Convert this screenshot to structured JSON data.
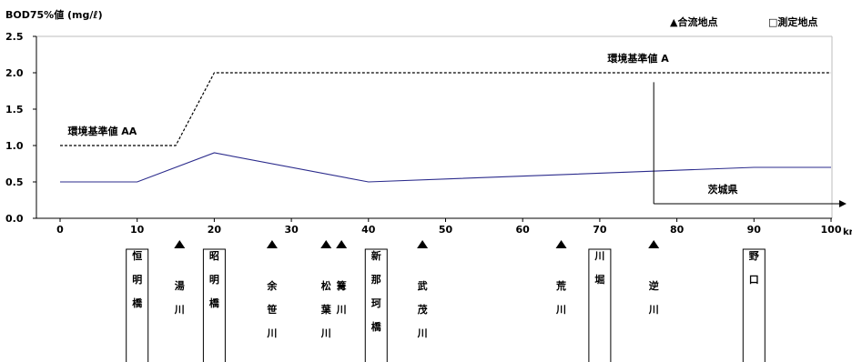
{
  "chart_data": {
    "type": "line",
    "ylabel": "BOD75%値 (mg/ℓ)",
    "xunit": "km",
    "xlim": [
      0,
      100
    ],
    "ylim": [
      0,
      2.5
    ],
    "x_ticks": [
      0,
      10,
      20,
      30,
      40,
      50,
      60,
      70,
      80,
      90,
      100
    ],
    "x_tick_labels": [
      "0",
      "10",
      "20",
      "30",
      "40",
      "50",
      "60",
      "70",
      "80",
      "90",
      "100"
    ],
    "y_ticks": [
      0,
      0.5,
      1.0,
      1.5,
      2.0,
      2.5
    ],
    "y_tick_labels": [
      "0.0",
      "0.5",
      "1.0",
      "1.5",
      "2.0",
      "2.5"
    ],
    "grid": false,
    "legend": {
      "placement": "top-right",
      "confluence": "▲合流地点",
      "measurement": "□測定地点"
    },
    "series": [
      {
        "values": [
          {
            "x": 0,
            "y": 0.5
          },
          {
            "x": 10,
            "y": 0.5
          },
          {
            "x": 20,
            "y": 0.9
          },
          {
            "x": 40,
            "y": 0.5
          },
          {
            "x": 90,
            "y": 0.7
          },
          {
            "x": 100,
            "y": 0.7
          }
        ],
        "color": "#2b2b8c"
      },
      {
        "values": [
          {
            "x": 0,
            "y": 1.0
          },
          {
            "x": 15,
            "y": 1.0
          },
          {
            "x": 20,
            "y": 2.0
          },
          {
            "x": 100,
            "y": 2.0
          }
        ],
        "color": "#000000",
        "dashed": true
      }
    ],
    "annotations": {
      "standard_aa": {
        "text": "環境基準値 AA",
        "x": 1,
        "y": 1.2
      },
      "standard_a": {
        "text": "環境基準値 A",
        "x": 71,
        "y": 2.2
      },
      "prefecture": {
        "text": "茨城県",
        "x": 77,
        "arrow_to": 102,
        "y": 0.2,
        "label_x": 84,
        "label_y": 0.4,
        "bracket_top": 1.87
      }
    },
    "stations": [
      {
        "x": 10,
        "chars": [
          "恒",
          "明",
          "橋"
        ],
        "boxed": true
      },
      {
        "x": 20,
        "chars": [
          "昭",
          "明",
          "橋"
        ],
        "boxed": true
      },
      {
        "x": 41,
        "chars": [
          "新",
          "那",
          "珂",
          "橋"
        ],
        "boxed": true
      },
      {
        "x": 70,
        "chars": [
          "川",
          "堀"
        ],
        "boxed": true
      },
      {
        "x": 90,
        "chars": [
          "野",
          "口"
        ],
        "boxed": true
      }
    ],
    "confluences": [
      {
        "x": 15.5,
        "chars": [
          "湯",
          "川"
        ]
      },
      {
        "x": 27.5,
        "chars": [
          "余",
          "笹",
          "川"
        ]
      },
      {
        "x": 34.5,
        "chars": [
          "松",
          "葉",
          "川"
        ]
      },
      {
        "x": 36.5,
        "chars": [
          "篝",
          "川"
        ]
      },
      {
        "x": 47,
        "chars": [
          "武",
          "茂",
          "川"
        ]
      },
      {
        "x": 65,
        "chars": [
          "荒",
          "川"
        ]
      },
      {
        "x": 77,
        "chars": [
          "逆",
          "川"
        ]
      }
    ]
  }
}
